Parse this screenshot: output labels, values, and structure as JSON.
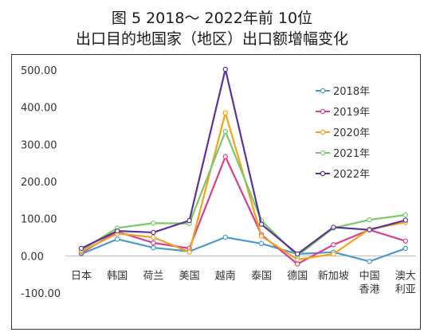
{
  "title_line1": "图 5  2018～ 2022年前 10位",
  "title_line2": "出口目的地国家（地区）出口额增幅变化",
  "chart_data": {
    "type": "line",
    "categories": [
      "日本",
      "韩国",
      "荷兰",
      "美国",
      "越南",
      "泰国",
      "德国",
      "新加坡",
      "中国香港",
      "澳大利亚"
    ],
    "category_lines": [
      [
        "日本"
      ],
      [
        "韩国"
      ],
      [
        "荷兰"
      ],
      [
        "美国"
      ],
      [
        "越南"
      ],
      [
        "泰国"
      ],
      [
        "德国"
      ],
      [
        "新加坡"
      ],
      [
        "中国",
        "香港"
      ],
      [
        "澳大",
        "利亚"
      ]
    ],
    "ylim": [
      -100,
      500
    ],
    "yticks": [
      -100,
      0,
      100,
      200,
      300,
      400,
      500
    ],
    "ytick_labels": [
      "-100.00",
      "0.00",
      "100.00",
      "200.00",
      "300.00",
      "400.00",
      "500.00"
    ],
    "grid": false,
    "legend_position": "top-right",
    "series": [
      {
        "name": "2018年",
        "color": "#4a9bc9",
        "values": [
          5,
          45,
          22,
          12,
          50,
          33,
          5,
          10,
          -15,
          20
        ]
      },
      {
        "name": "2019年",
        "color": "#d6408e",
        "values": [
          8,
          65,
          35,
          20,
          267,
          57,
          -22,
          30,
          70,
          40
        ]
      },
      {
        "name": "2020年",
        "color": "#f5a11b",
        "values": [
          12,
          60,
          50,
          10,
          385,
          53,
          -10,
          5,
          72,
          90
        ]
      },
      {
        "name": "2021年",
        "color": "#78c96a",
        "values": [
          15,
          75,
          88,
          87,
          335,
          95,
          0,
          75,
          97,
          110
        ]
      },
      {
        "name": "2022年",
        "color": "#5a3399",
        "values": [
          20,
          67,
          63,
          95,
          502,
          85,
          5,
          77,
          70,
          96
        ]
      }
    ]
  }
}
